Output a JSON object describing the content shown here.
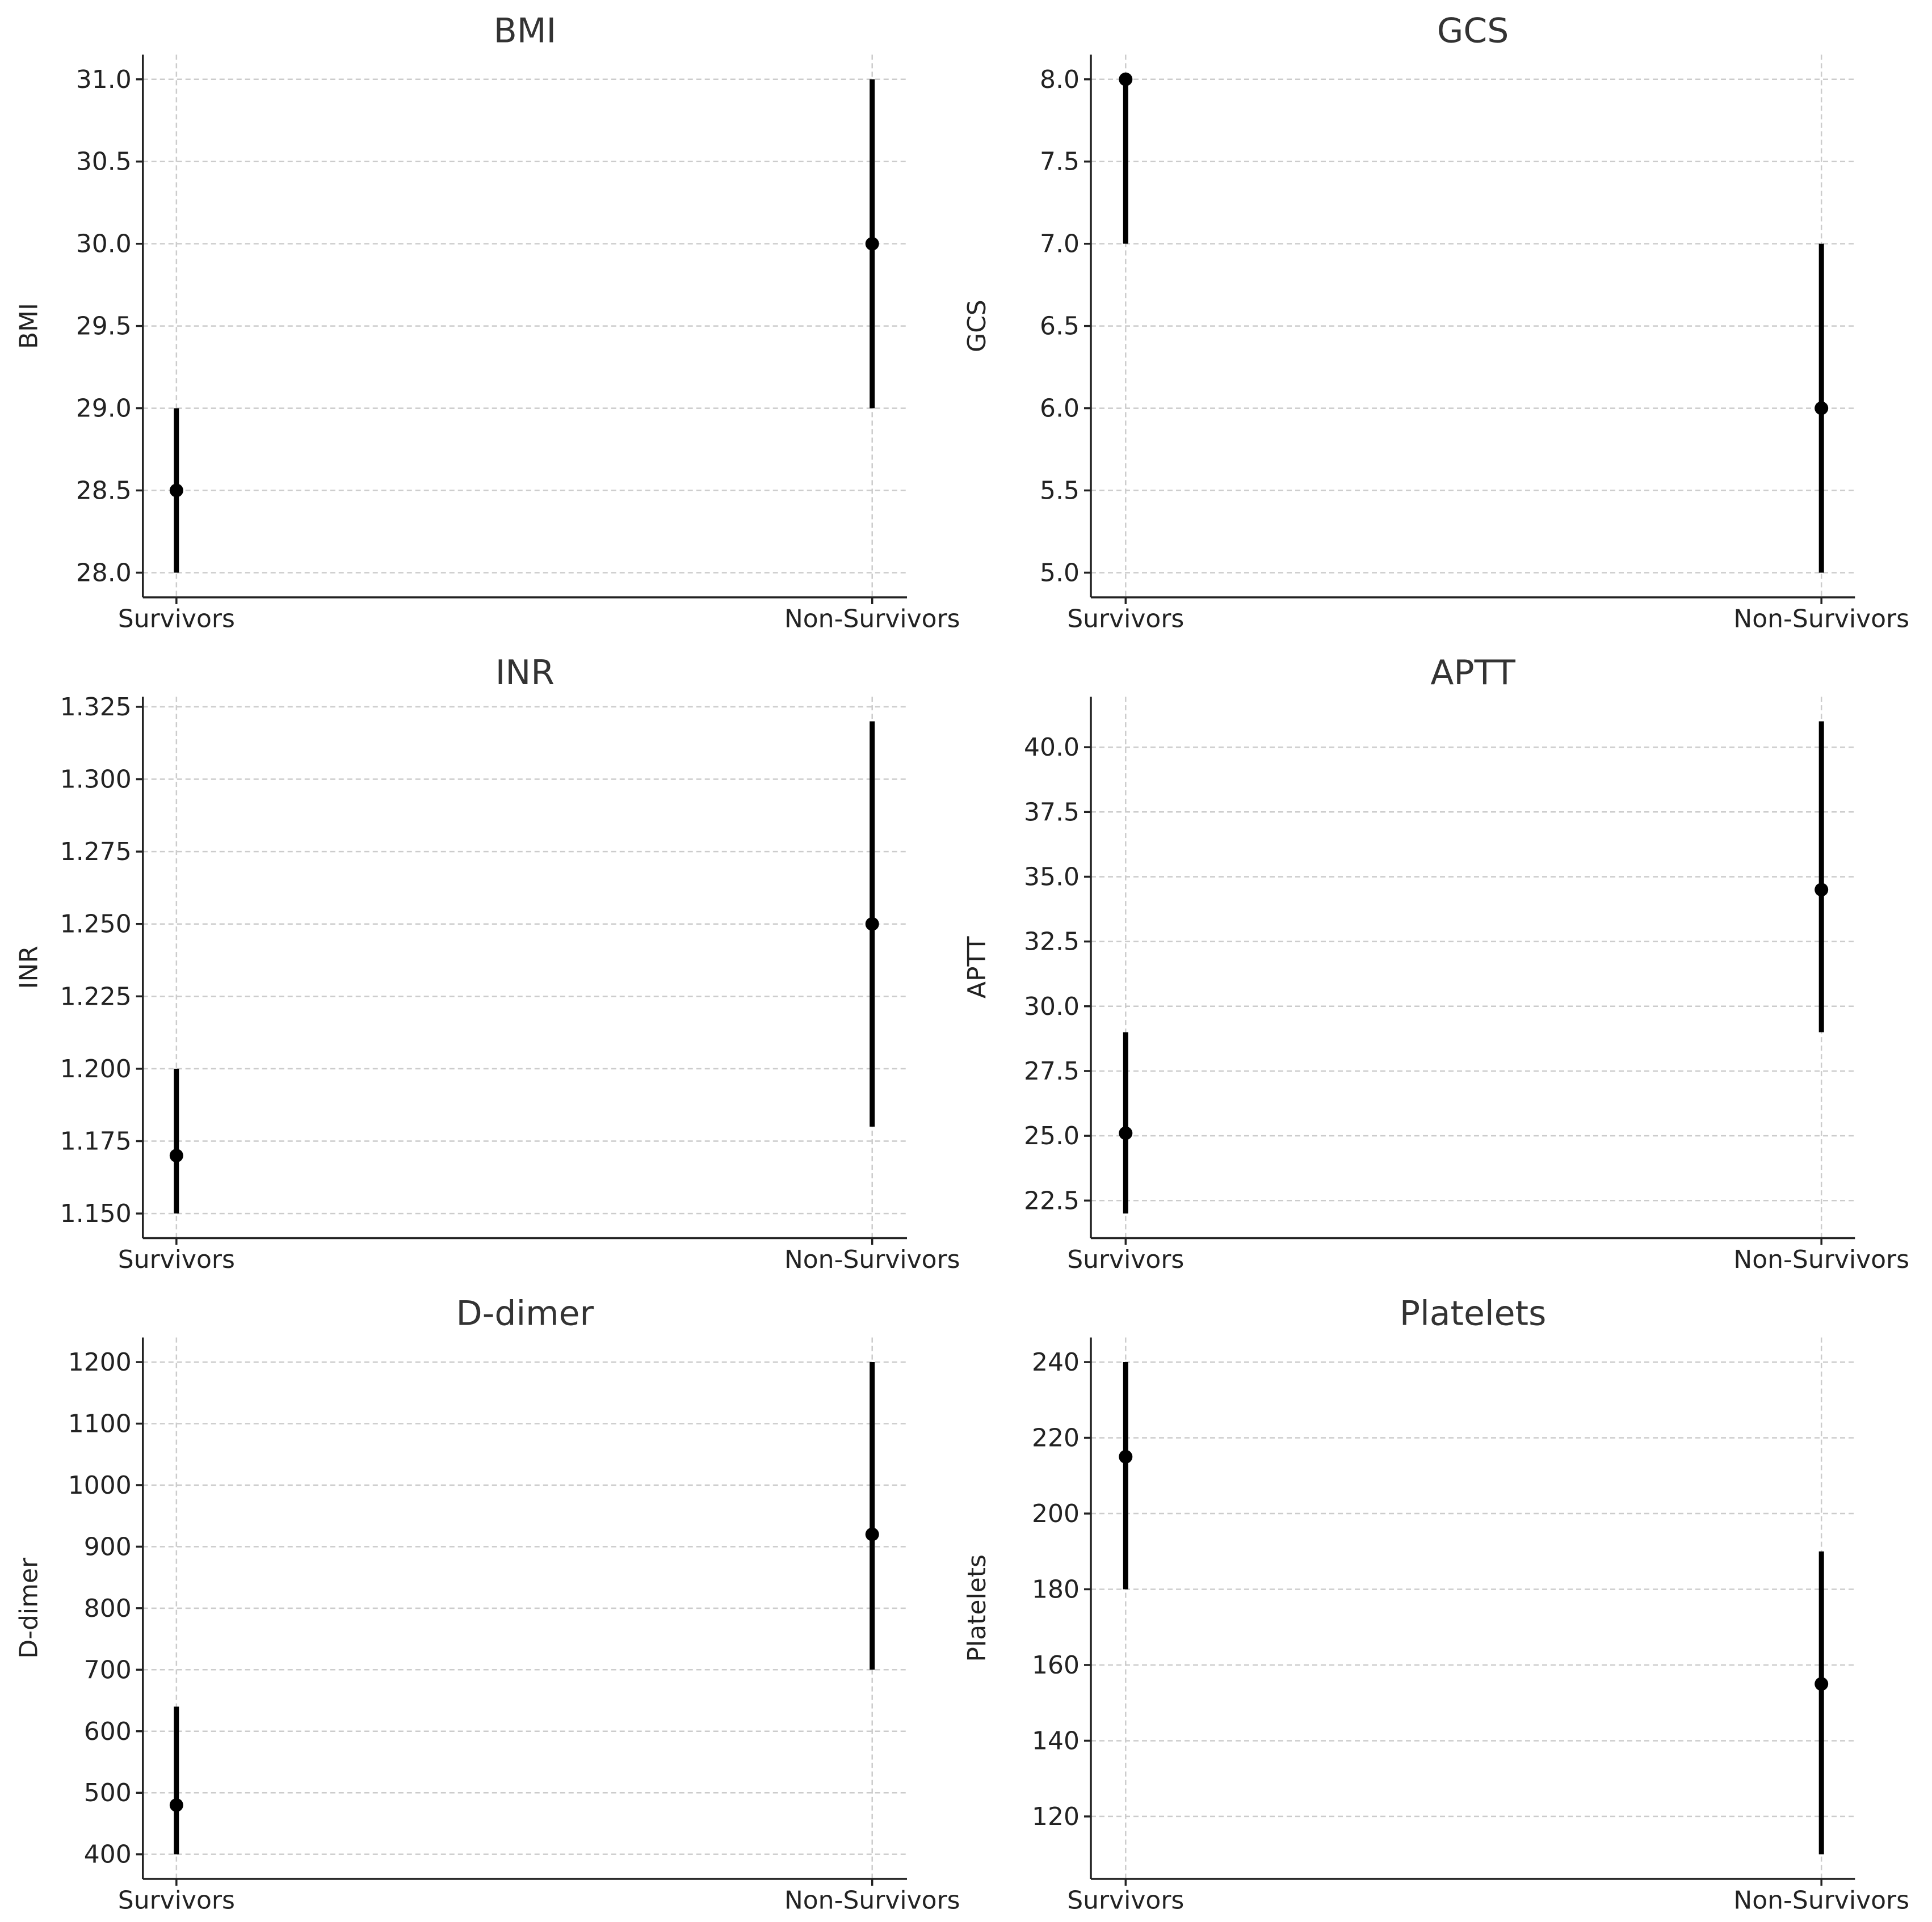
{
  "chart_data": [
    {
      "type": "errorbar",
      "title": "BMI",
      "xlabel": "",
      "ylabel": "BMI",
      "categories": [
        "Survivors",
        "Non-Survivors"
      ],
      "values": [
        28.5,
        30.0
      ],
      "lower": [
        28.0,
        29.0
      ],
      "upper": [
        29.0,
        31.0
      ],
      "yticks": [
        28.0,
        28.5,
        29.0,
        29.5,
        30.0,
        30.5,
        31.0
      ],
      "ytick_labels": [
        "28.0",
        "28.5",
        "29.0",
        "29.5",
        "30.0",
        "30.5",
        "31.0"
      ],
      "ylim": [
        27.85,
        31.15
      ],
      "grid": true
    },
    {
      "type": "errorbar",
      "title": "GCS",
      "xlabel": "",
      "ylabel": "GCS",
      "categories": [
        "Survivors",
        "Non-Survivors"
      ],
      "values": [
        8.0,
        6.0
      ],
      "lower": [
        7.0,
        5.0
      ],
      "upper": [
        8.0,
        7.0
      ],
      "yticks": [
        5.0,
        5.5,
        6.0,
        6.5,
        7.0,
        7.5,
        8.0
      ],
      "ytick_labels": [
        "5.0",
        "5.5",
        "6.0",
        "6.5",
        "7.0",
        "7.5",
        "8.0"
      ],
      "ylim": [
        4.85,
        8.15
      ],
      "grid": true
    },
    {
      "type": "errorbar",
      "title": "INR",
      "xlabel": "",
      "ylabel": "INR",
      "categories": [
        "Survivors",
        "Non-Survivors"
      ],
      "values": [
        1.17,
        1.25
      ],
      "lower": [
        1.15,
        1.18
      ],
      "upper": [
        1.2,
        1.32
      ],
      "yticks": [
        1.15,
        1.175,
        1.2,
        1.225,
        1.25,
        1.275,
        1.3,
        1.325
      ],
      "ytick_labels": [
        "1.150",
        "1.175",
        "1.200",
        "1.225",
        "1.250",
        "1.275",
        "1.300",
        "1.325"
      ],
      "ylim": [
        1.1415,
        1.3285
      ],
      "grid": true
    },
    {
      "type": "errorbar",
      "title": "APTT",
      "xlabel": "",
      "ylabel": "APTT",
      "categories": [
        "Survivors",
        "Non-Survivors"
      ],
      "values": [
        25.1,
        34.5
      ],
      "lower": [
        22.0,
        29.0
      ],
      "upper": [
        29.0,
        41.0
      ],
      "yticks": [
        22.5,
        25.0,
        27.5,
        30.0,
        32.5,
        35.0,
        37.5,
        40.0
      ],
      "ytick_labels": [
        "22.5",
        "25.0",
        "27.5",
        "30.0",
        "32.5",
        "35.0",
        "37.5",
        "40.0"
      ],
      "ylim": [
        21.05,
        41.95
      ],
      "grid": true
    },
    {
      "type": "errorbar",
      "title": "D-dimer",
      "xlabel": "",
      "ylabel": "D-dimer",
      "categories": [
        "Survivors",
        "Non-Survivors"
      ],
      "values": [
        480,
        920
      ],
      "lower": [
        400,
        700
      ],
      "upper": [
        640,
        1200
      ],
      "yticks": [
        400,
        500,
        600,
        700,
        800,
        900,
        1000,
        1100,
        1200
      ],
      "ytick_labels": [
        "400",
        "500",
        "600",
        "700",
        "800",
        "900",
        "1000",
        "1100",
        "1200"
      ],
      "ylim": [
        360,
        1240
      ],
      "grid": true
    },
    {
      "type": "errorbar",
      "title": "Platelets",
      "xlabel": "",
      "ylabel": "Platelets",
      "categories": [
        "Survivors",
        "Non-Survivors"
      ],
      "values": [
        215,
        155
      ],
      "lower": [
        180,
        110
      ],
      "upper": [
        240,
        190
      ],
      "yticks": [
        120,
        140,
        160,
        180,
        200,
        220,
        240
      ],
      "ytick_labels": [
        "120",
        "140",
        "160",
        "180",
        "200",
        "220",
        "240"
      ],
      "ylim": [
        103.5,
        246.5
      ],
      "grid": true
    }
  ]
}
